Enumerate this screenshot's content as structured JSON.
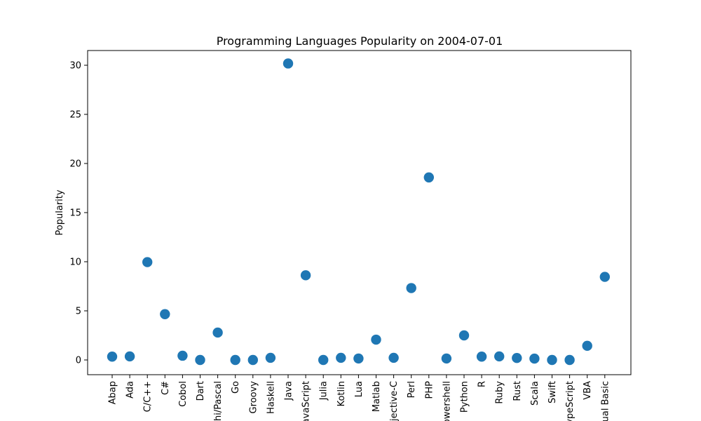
{
  "chart_data": {
    "type": "scatter",
    "title": "Programming Languages Popularity on 2004-07-01",
    "xlabel": "",
    "ylabel": "Popularity",
    "ylim": [
      -1.5,
      31.5
    ],
    "yticks": [
      0,
      5,
      10,
      15,
      20,
      25,
      30
    ],
    "grid": false,
    "marker_color": "#1f77b4",
    "categories": [
      "Abap",
      "Ada",
      "C/C++",
      "C#",
      "Cobol",
      "Dart",
      "Delphi/Pascal",
      "Go",
      "Groovy",
      "Haskell",
      "Java",
      "JavaScript",
      "Julia",
      "Kotlin",
      "Lua",
      "Matlab",
      "Objective-C",
      "Perl",
      "PHP",
      "Powershell",
      "Python",
      "R",
      "Ruby",
      "Rust",
      "Scala",
      "Swift",
      "TypeScript",
      "VBA",
      "Visual Basic"
    ],
    "values": [
      0.34,
      0.36,
      9.96,
      4.66,
      0.43,
      0.0,
      2.79,
      0.0,
      0.0,
      0.22,
      30.18,
      8.62,
      0.0,
      0.22,
      0.15,
      2.07,
      0.22,
      7.32,
      18.58,
      0.15,
      2.5,
      0.34,
      0.36,
      0.2,
      0.14,
      0.0,
      0.0,
      1.44,
      8.46
    ]
  }
}
